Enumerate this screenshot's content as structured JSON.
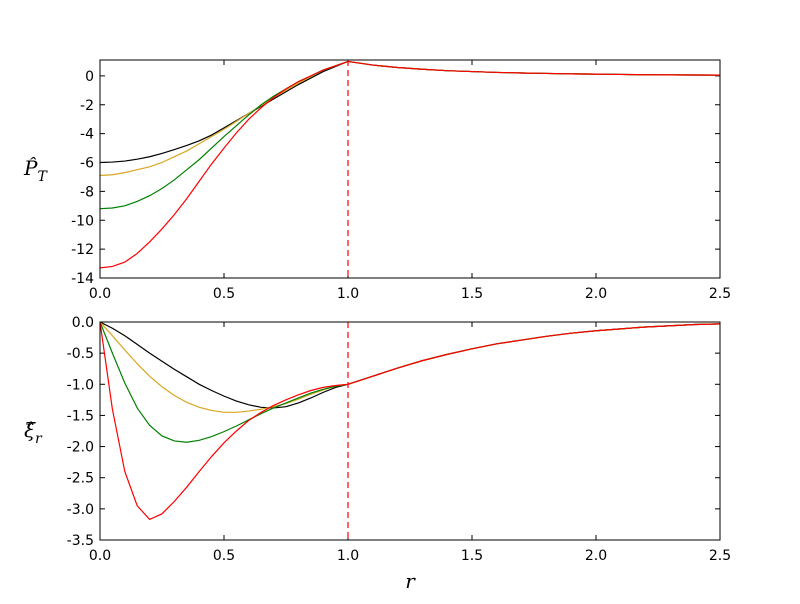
{
  "chart_data": [
    {
      "type": "line",
      "ylabel": [
        "P̂",
        "T"
      ],
      "x": [
        0,
        0.05,
        0.1,
        0.15,
        0.2,
        0.25,
        0.3,
        0.35,
        0.4,
        0.45,
        0.5,
        0.55,
        0.6,
        0.65,
        0.7,
        0.75,
        0.8,
        0.85,
        0.9,
        0.95,
        1.0,
        1.1,
        1.2,
        1.3,
        1.4,
        1.5,
        1.6,
        1.7,
        1.8,
        1.9,
        2.0,
        2.1,
        2.2,
        2.3,
        2.4,
        2.5
      ],
      "series": [
        {
          "color": "#000000",
          "values": [
            -6.0,
            -5.97,
            -5.9,
            -5.77,
            -5.6,
            -5.37,
            -5.1,
            -4.82,
            -4.5,
            -4.1,
            -3.6,
            -3.1,
            -2.6,
            -2.1,
            -1.6,
            -1.1,
            -0.6,
            -0.15,
            0.3,
            0.65,
            1.0,
            0.75,
            0.58,
            0.46,
            0.36,
            0.3,
            0.24,
            0.2,
            0.17,
            0.14,
            0.12,
            0.1,
            0.08,
            0.07,
            0.06,
            0.05
          ]
        },
        {
          "color": "#daa520",
          "values": [
            -6.9,
            -6.85,
            -6.7,
            -6.5,
            -6.3,
            -6.0,
            -5.6,
            -5.2,
            -4.7,
            -4.2,
            -3.7,
            -3.15,
            -2.6,
            -2.05,
            -1.5,
            -1.0,
            -0.5,
            -0.05,
            0.4,
            0.7,
            1.0,
            0.75,
            0.58,
            0.46,
            0.36,
            0.3,
            0.24,
            0.2,
            0.17,
            0.14,
            0.12,
            0.1,
            0.08,
            0.07,
            0.06,
            0.05
          ]
        },
        {
          "color": "#008000",
          "values": [
            -9.2,
            -9.15,
            -9.0,
            -8.7,
            -8.3,
            -7.8,
            -7.2,
            -6.5,
            -5.8,
            -5.0,
            -4.2,
            -3.45,
            -2.7,
            -2.0,
            -1.4,
            -0.9,
            -0.4,
            0.0,
            0.4,
            0.7,
            1.0,
            0.75,
            0.58,
            0.46,
            0.36,
            0.3,
            0.24,
            0.2,
            0.17,
            0.14,
            0.12,
            0.1,
            0.08,
            0.07,
            0.06,
            0.05
          ]
        },
        {
          "color": "#ff0000",
          "values": [
            -13.3,
            -13.2,
            -12.9,
            -12.3,
            -11.5,
            -10.6,
            -9.6,
            -8.5,
            -7.3,
            -6.1,
            -5.0,
            -3.95,
            -3.0,
            -2.2,
            -1.5,
            -0.9,
            -0.4,
            0.0,
            0.4,
            0.7,
            1.0,
            0.75,
            0.58,
            0.46,
            0.36,
            0.3,
            0.24,
            0.2,
            0.17,
            0.14,
            0.12,
            0.1,
            0.08,
            0.07,
            0.06,
            0.05
          ]
        }
      ],
      "vline": 1.0,
      "vline_color": "#ff0000",
      "vline_style": "dashed",
      "xlim": [
        0,
        2.5
      ],
      "xticks": [
        {
          "value": 0,
          "label": "0.0"
        },
        0.5,
        {
          "value": 1,
          "label": "1.0"
        },
        1.5,
        {
          "value": 2,
          "label": "2.0"
        },
        2.5
      ],
      "ylim": [
        -14,
        1.1
      ],
      "yticks": [
        -14,
        -12,
        -10,
        -8,
        -6,
        -4,
        -2,
        0
      ]
    },
    {
      "type": "line",
      "ylabel": [
        "ξ̂",
        "r"
      ],
      "xlabel": "r",
      "x": [
        0,
        0.05,
        0.1,
        0.15,
        0.2,
        0.25,
        0.3,
        0.35,
        0.4,
        0.45,
        0.5,
        0.55,
        0.6,
        0.65,
        0.7,
        0.75,
        0.8,
        0.85,
        0.9,
        0.95,
        1.0,
        1.1,
        1.2,
        1.3,
        1.4,
        1.5,
        1.6,
        1.7,
        1.8,
        1.9,
        2.0,
        2.1,
        2.2,
        2.3,
        2.4,
        2.5
      ],
      "series": [
        {
          "color": "#000000",
          "values": [
            0,
            -0.1,
            -0.22,
            -0.36,
            -0.5,
            -0.63,
            -0.76,
            -0.88,
            -1.0,
            -1.1,
            -1.19,
            -1.27,
            -1.33,
            -1.37,
            -1.38,
            -1.36,
            -1.3,
            -1.22,
            -1.13,
            -1.05,
            -1.0,
            -0.87,
            -0.74,
            -0.62,
            -0.52,
            -0.43,
            -0.35,
            -0.29,
            -0.23,
            -0.18,
            -0.14,
            -0.11,
            -0.08,
            -0.06,
            -0.04,
            -0.03
          ]
        },
        {
          "color": "#daa520",
          "values": [
            0,
            -0.22,
            -0.45,
            -0.67,
            -0.87,
            -1.04,
            -1.18,
            -1.29,
            -1.37,
            -1.42,
            -1.45,
            -1.45,
            -1.43,
            -1.4,
            -1.36,
            -1.31,
            -1.24,
            -1.16,
            -1.09,
            -1.03,
            -1.0,
            -0.87,
            -0.74,
            -0.62,
            -0.52,
            -0.43,
            -0.35,
            -0.29,
            -0.23,
            -0.18,
            -0.14,
            -0.11,
            -0.08,
            -0.06,
            -0.04,
            -0.03
          ]
        },
        {
          "color": "#008000",
          "values": [
            0,
            -0.5,
            -0.98,
            -1.38,
            -1.66,
            -1.83,
            -1.91,
            -1.93,
            -1.9,
            -1.84,
            -1.76,
            -1.67,
            -1.57,
            -1.47,
            -1.38,
            -1.3,
            -1.22,
            -1.14,
            -1.08,
            -1.03,
            -1.0,
            -0.87,
            -0.74,
            -0.62,
            -0.52,
            -0.43,
            -0.35,
            -0.29,
            -0.23,
            -0.18,
            -0.14,
            -0.11,
            -0.08,
            -0.06,
            -0.04,
            -0.03
          ]
        },
        {
          "color": "#ff0000",
          "values": [
            0,
            -1.4,
            -2.4,
            -2.95,
            -3.17,
            -3.08,
            -2.88,
            -2.65,
            -2.4,
            -2.16,
            -1.94,
            -1.75,
            -1.58,
            -1.45,
            -1.34,
            -1.25,
            -1.17,
            -1.1,
            -1.05,
            -1.02,
            -1.0,
            -0.87,
            -0.74,
            -0.62,
            -0.52,
            -0.43,
            -0.35,
            -0.29,
            -0.23,
            -0.18,
            -0.14,
            -0.11,
            -0.08,
            -0.06,
            -0.04,
            -0.03
          ]
        }
      ],
      "vline": 1.0,
      "vline_color": "#ff0000",
      "vline_style": "dashed",
      "xlim": [
        0,
        2.5
      ],
      "xticks": [
        {
          "value": 0,
          "label": "0.0"
        },
        0.5,
        {
          "value": 1,
          "label": "1.0"
        },
        1.5,
        {
          "value": 2,
          "label": "2.0"
        },
        2.5
      ],
      "ylim": [
        -3.5,
        0
      ],
      "yticks": [
        -3.5,
        {
          "value": -3,
          "label": "-3.0"
        },
        -2.5,
        {
          "value": -2,
          "label": "-2.0"
        },
        -1.5,
        {
          "value": -1,
          "label": "-1.0"
        },
        -0.5,
        {
          "value": 0,
          "label": "0.0"
        }
      ]
    }
  ]
}
